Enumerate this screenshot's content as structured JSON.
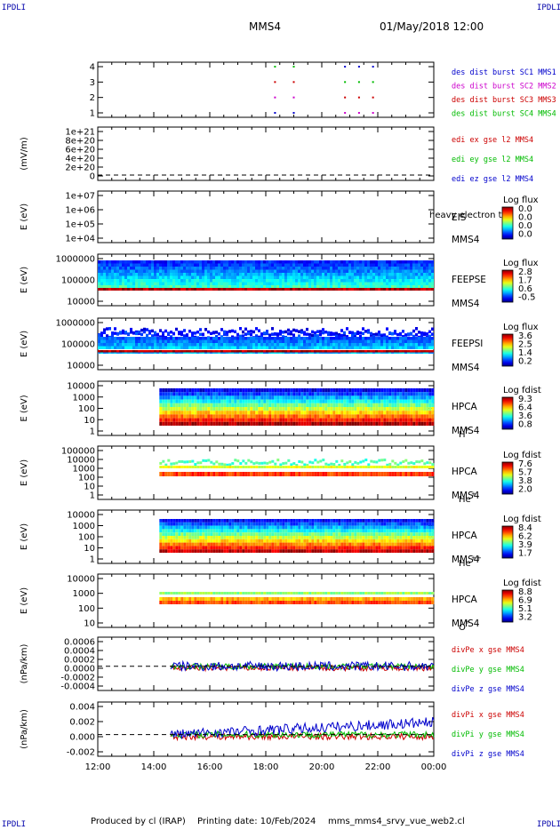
{
  "header": {
    "corner_left": "IPDLI",
    "corner_right": "IPDLI",
    "spacecraft": "MMS4",
    "datetime": "01/May/2018 12:00"
  },
  "footer": {
    "produced_by": "Produced by cl (IRAP)",
    "printing_date": "Printing date: 10/Feb/2024",
    "script_name": "mms_mms4_srvy_vue_web2.cl",
    "corner_left": "IPDLI",
    "corner_right": "IPDLI"
  },
  "colors": {
    "blue": "#0000cc",
    "magenta": "#cc00cc",
    "red": "#cc0000",
    "green": "#00bb00"
  },
  "chart_data": [
    {
      "id": "burst",
      "type": "scatter",
      "yticks": [
        "4",
        "3",
        "2",
        "1"
      ],
      "ylim": [
        0.5,
        4.5
      ],
      "legend": [
        {
          "text": "des dist burst SC1 MMS1",
          "color": "#0000cc"
        },
        {
          "text": "des dist burst SC2 MMS2",
          "color": "#cc00cc"
        },
        {
          "text": "des dist burst SC3 MMS3",
          "color": "#cc0000"
        },
        {
          "text": "des dist burst SC4 MMS4",
          "color": "#00bb00"
        }
      ],
      "events_hours": [
        18.33,
        19.0,
        20.83,
        21.33,
        21.83
      ]
    },
    {
      "id": "edi",
      "type": "line",
      "ylabel": "(mV/m)",
      "yticks": [
        "1e+21",
        "8e+20",
        "6e+20",
        "4e+20",
        "2e+20",
        "0"
      ],
      "ylim": [
        0,
        1e+21
      ],
      "legend": [
        {
          "text": "edi ex gse l2 MMS4",
          "color": "#cc0000"
        },
        {
          "text": "edi ey gse l2 MMS4",
          "color": "#00bb00"
        },
        {
          "text": "edi ez gse l2 MMS4",
          "color": "#0000cc"
        }
      ]
    },
    {
      "id": "eis",
      "type": "heatmap",
      "ylabel": "E (eV)",
      "yticks": [
        "1e+07",
        "1e+06",
        "1e+05",
        "1e+04"
      ],
      "labels": [
        "EIS",
        "heavy electron to",
        "MMS4"
      ],
      "cbar": {
        "title": "Log flux",
        "ticks": [
          "0.0",
          "0.0",
          "0.0",
          "0.0"
        ]
      }
    },
    {
      "id": "feepse",
      "type": "heatmap",
      "ylabel": "E (eV)",
      "yticks": [
        "1000000",
        "100000",
        "10000"
      ],
      "labels": [
        "FEEPSE",
        "MMS4"
      ],
      "cbar": {
        "title": "Log flux",
        "ticks": [
          "2.8",
          "1.7",
          "0.6",
          "-0.5"
        ]
      }
    },
    {
      "id": "feepsi",
      "type": "heatmap",
      "ylabel": "E (eV)",
      "yticks": [
        "1000000",
        "100000",
        "10000"
      ],
      "labels": [
        "FEEPSI",
        "MMS4"
      ],
      "cbar": {
        "title": "Log flux",
        "ticks": [
          "3.6",
          "2.5",
          "1.4",
          "0.2"
        ]
      }
    },
    {
      "id": "hpca_h",
      "type": "heatmap",
      "ylabel": "E (eV)",
      "yticks": [
        "10000",
        "1000",
        "100",
        "10",
        "1"
      ],
      "labels": [
        "HPCA",
        "MMS4"
      ],
      "species": "H",
      "charge": "+",
      "cbar": {
        "title": "Log fdist",
        "ticks": [
          "9.3",
          "6.4",
          "3.6",
          "0.8"
        ]
      }
    },
    {
      "id": "hpca_he",
      "type": "heatmap",
      "ylabel": "E (eV)",
      "yticks": [
        "100000",
        "10000",
        "1000",
        "100",
        "10",
        "1"
      ],
      "labels": [
        "HPCA",
        "MMS4"
      ],
      "species": "He",
      "charge": "+",
      "cbar": {
        "title": "Log fdist",
        "ticks": [
          "7.6",
          "5.7",
          "3.8",
          "2.0"
        ]
      }
    },
    {
      "id": "hpca_hepp",
      "type": "heatmap",
      "ylabel": "E (eV)",
      "yticks": [
        "10000",
        "1000",
        "100",
        "10",
        "1"
      ],
      "labels": [
        "HPCA",
        "MMS4"
      ],
      "species": "He",
      "charge": "++",
      "cbar": {
        "title": "Log fdist",
        "ticks": [
          "8.4",
          "6.2",
          "3.9",
          "1.7"
        ]
      }
    },
    {
      "id": "hpca_o",
      "type": "heatmap",
      "ylabel": "E (eV)",
      "yticks": [
        "10000",
        "1000",
        "100",
        "10"
      ],
      "labels": [
        "HPCA",
        "MMS4"
      ],
      "species": "O",
      "charge": "+",
      "cbar": {
        "title": "Log fdist",
        "ticks": [
          "8.8",
          "6.9",
          "5.1",
          "3.2"
        ]
      }
    },
    {
      "id": "divpe",
      "type": "line",
      "ylabel": "(nPa/km)",
      "yticks": [
        "0.0006",
        "0.0004",
        "0.0002",
        "0.0000",
        "-0.0002",
        "-0.0004"
      ],
      "ylim": [
        -0.0005,
        0.0006
      ],
      "legend": [
        {
          "text": "divPe x gse MMS4",
          "color": "#cc0000"
        },
        {
          "text": "divPe y gse MMS4",
          "color": "#00bb00"
        },
        {
          "text": "divPe z gse MMS4",
          "color": "#0000cc"
        }
      ]
    },
    {
      "id": "divpi",
      "type": "line",
      "ylabel": "(nPa/km)",
      "yticks": [
        "0.004",
        "0.002",
        "0.000",
        "-0.002"
      ],
      "ylim": [
        -0.003,
        0.0045
      ],
      "legend": [
        {
          "text": "divPi x gse MMS4",
          "color": "#cc0000"
        },
        {
          "text": "divPi y gse MMS4",
          "color": "#00bb00"
        },
        {
          "text": "divPi z gse MMS4",
          "color": "#0000cc"
        }
      ]
    }
  ],
  "xaxis": {
    "ticks": [
      "12:00",
      "14:00",
      "16:00",
      "18:00",
      "20:00",
      "22:00",
      "00:00"
    ],
    "xlim_hours": [
      12,
      24
    ]
  }
}
